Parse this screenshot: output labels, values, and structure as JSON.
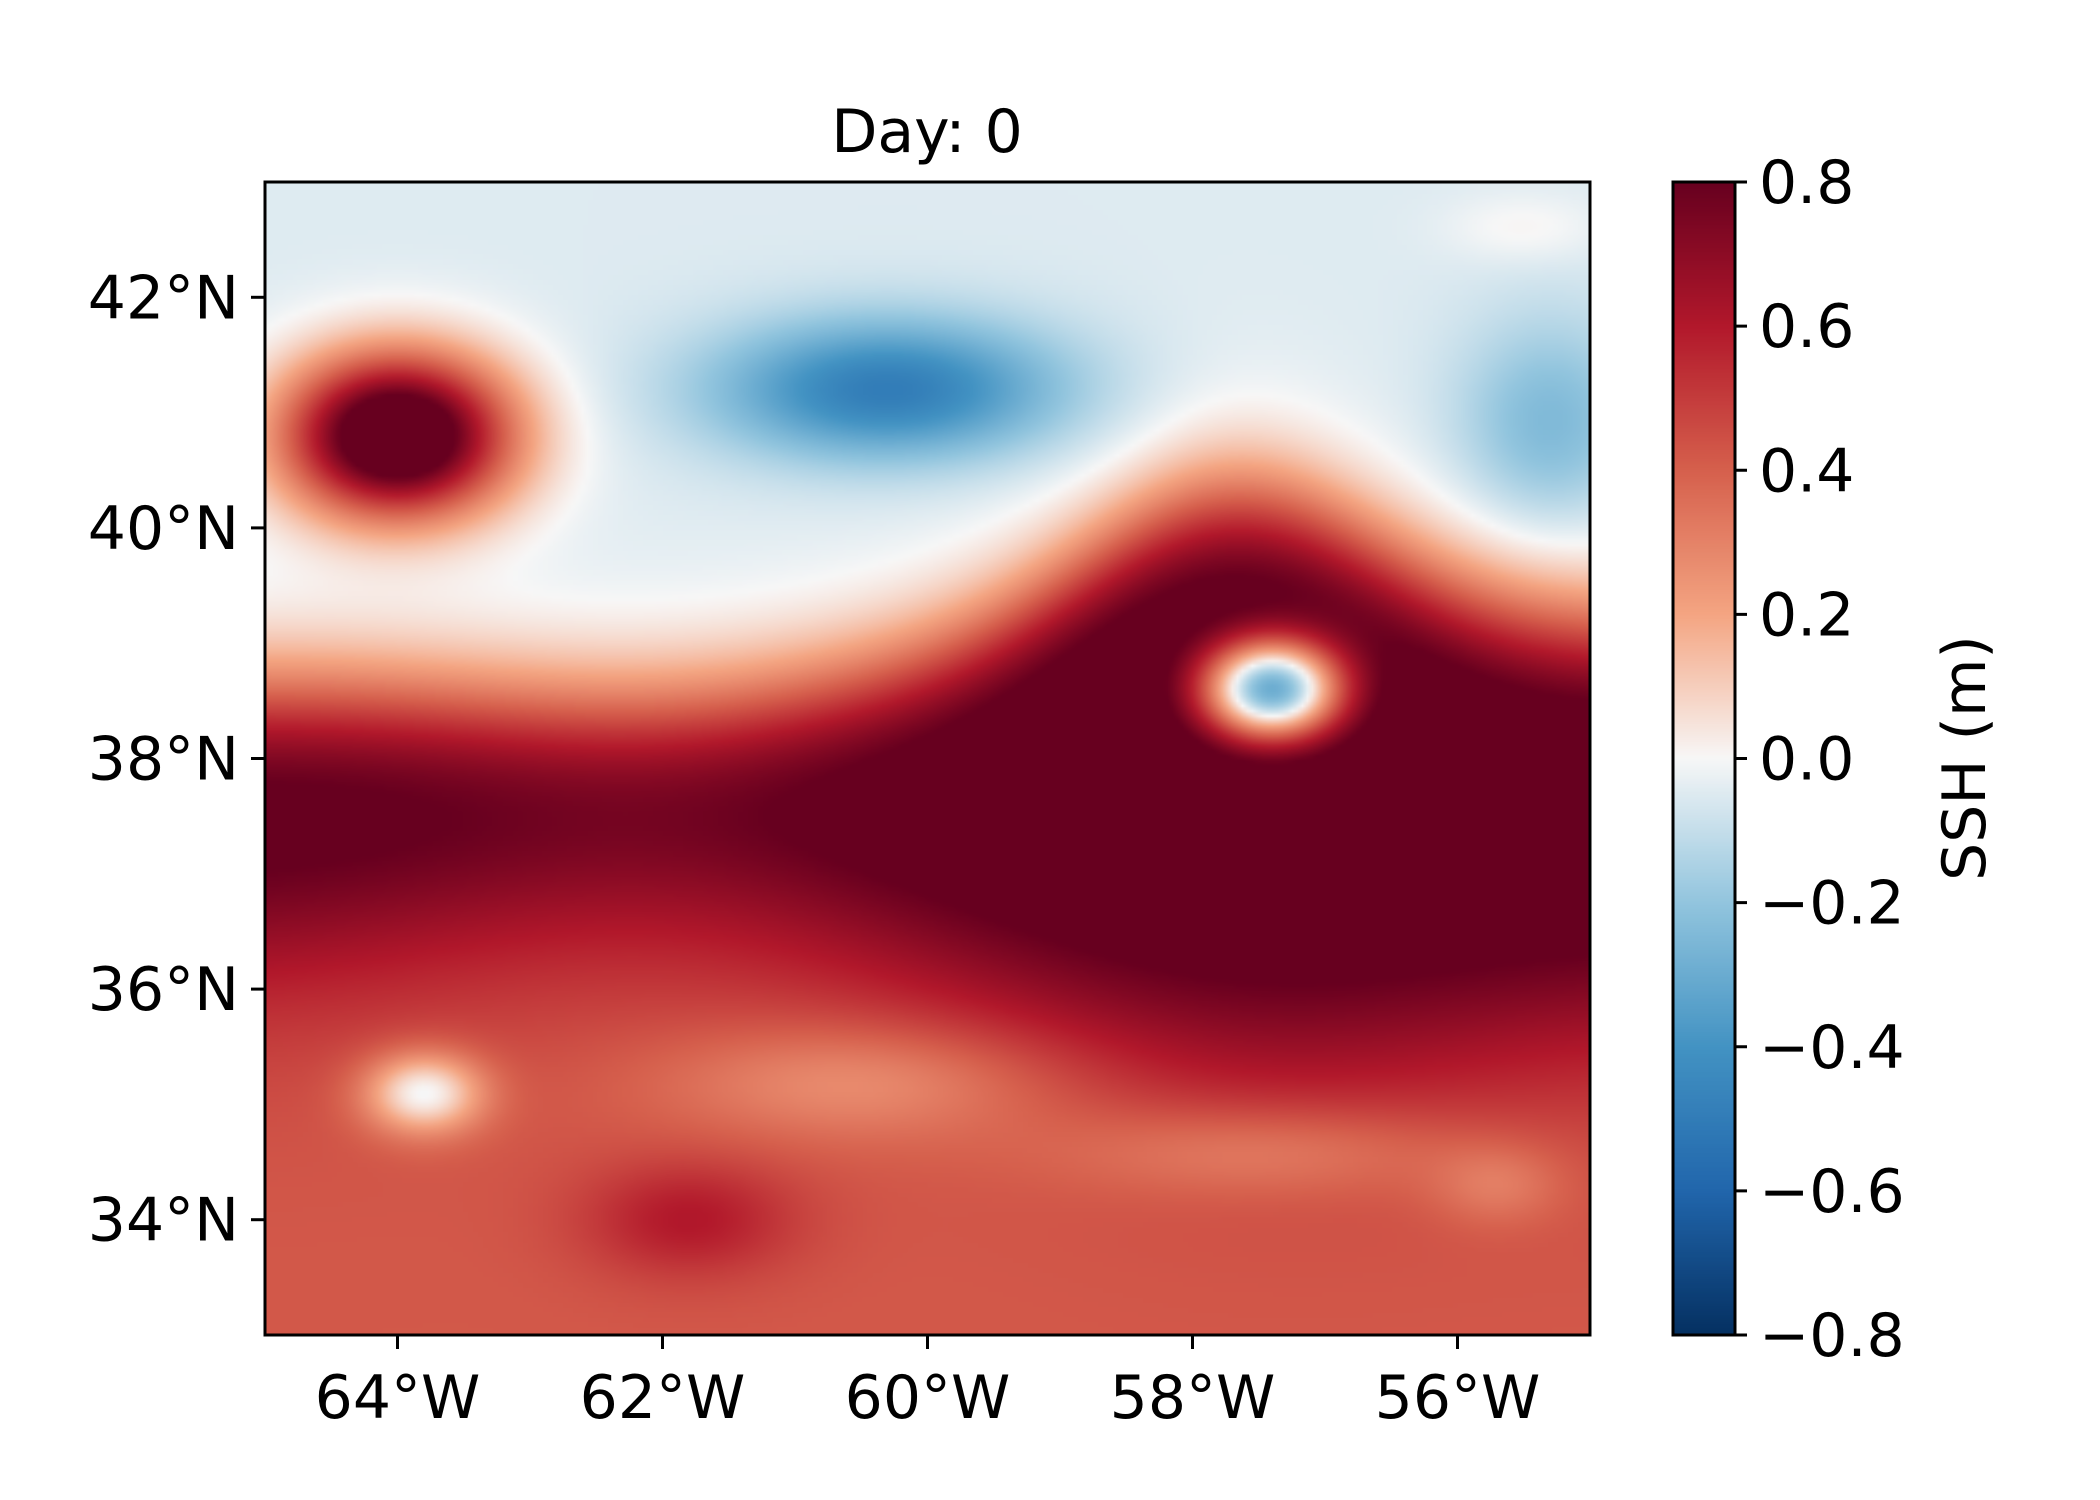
{
  "chart_data": {
    "type": "heatmap",
    "title": "Day: 0",
    "xlabel": "",
    "ylabel": "",
    "x_range": [
      -65,
      -55
    ],
    "y_range": [
      33,
      43
    ],
    "x_ticks": [
      {
        "value": -64,
        "label": "64°W"
      },
      {
        "value": -62,
        "label": "62°W"
      },
      {
        "value": -60,
        "label": "60°W"
      },
      {
        "value": -58,
        "label": "58°W"
      },
      {
        "value": -56,
        "label": "56°W"
      }
    ],
    "y_ticks": [
      {
        "value": 34,
        "label": "34°N"
      },
      {
        "value": 36,
        "label": "36°N"
      },
      {
        "value": 38,
        "label": "38°N"
      },
      {
        "value": 40,
        "label": "40°N"
      },
      {
        "value": 42,
        "label": "42°N"
      }
    ],
    "colorbar": {
      "label": "SSH (m)",
      "range": [
        -0.8,
        0.8
      ],
      "colormap": "RdBu_r",
      "ticks": [
        {
          "value": 0.8,
          "label": "0.8"
        },
        {
          "value": 0.6,
          "label": "0.6"
        },
        {
          "value": 0.4,
          "label": "0.4"
        },
        {
          "value": 0.2,
          "label": "0.2"
        },
        {
          "value": 0.0,
          "label": "0.0"
        },
        {
          "value": -0.2,
          "label": "−0.2"
        },
        {
          "value": -0.4,
          "label": "−0.4"
        },
        {
          "value": -0.6,
          "label": "−0.6"
        },
        {
          "value": -0.8,
          "label": "−0.8"
        }
      ]
    },
    "field_features": [
      {
        "kind": "warm-core eddy",
        "lon": -64.0,
        "lat": 40.8,
        "ssh": 0.9
      },
      {
        "kind": "cold anomaly",
        "lon": -60.3,
        "lat": 41.2,
        "ssh": -0.45
      },
      {
        "kind": "cold-core eddy",
        "lon": -57.4,
        "lat": 38.6,
        "ssh": -0.3
      },
      {
        "kind": "low spot",
        "lon": -63.8,
        "lat": 35.1,
        "ssh": 0.05
      },
      {
        "kind": "main jet",
        "lat_range": [
          36,
          38.5
        ],
        "ssh": 0.85
      }
    ]
  },
  "colors": {
    "axis": "#000000",
    "background": "#ffffff"
  }
}
